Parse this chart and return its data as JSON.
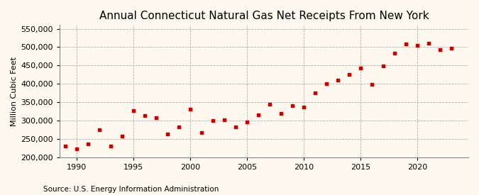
{
  "title": "Annual Connecticut Natural Gas Net Receipts From New York",
  "ylabel": "Million Cubic Feet",
  "source": "Source: U.S. Energy Information Administration",
  "background_color": "#fef9ee",
  "plot_bg_color": "#fef9ee",
  "marker_color": "#cc0000",
  "years": [
    1989,
    1990,
    1991,
    1992,
    1993,
    1994,
    1995,
    1996,
    1997,
    1998,
    1999,
    2000,
    2001,
    2002,
    2003,
    2004,
    2005,
    2006,
    2007,
    2008,
    2009,
    2010,
    2011,
    2012,
    2013,
    2014,
    2015,
    2016,
    2017,
    2018,
    2019,
    2020,
    2021,
    2022,
    2023
  ],
  "values": [
    230000,
    222000,
    237000,
    275000,
    230000,
    258000,
    327000,
    313000,
    308000,
    263000,
    283000,
    330000,
    268000,
    300000,
    302000,
    283000,
    296000,
    315000,
    345000,
    320000,
    340000,
    337000,
    375000,
    400000,
    410000,
    425000,
    442000,
    398000,
    448000,
    483000,
    508000,
    505000,
    510000,
    493000,
    497000
  ],
  "ylim": [
    200000,
    560000
  ],
  "xlim": [
    1988.5,
    2024.5
  ],
  "yticks": [
    200000,
    250000,
    300000,
    350000,
    400000,
    450000,
    500000,
    550000
  ],
  "xticks": [
    1990,
    1995,
    2000,
    2005,
    2010,
    2015,
    2020
  ],
  "grid_color": "#b0b0b0",
  "title_fontsize": 11,
  "label_fontsize": 8,
  "tick_fontsize": 8,
  "source_fontsize": 7.5
}
